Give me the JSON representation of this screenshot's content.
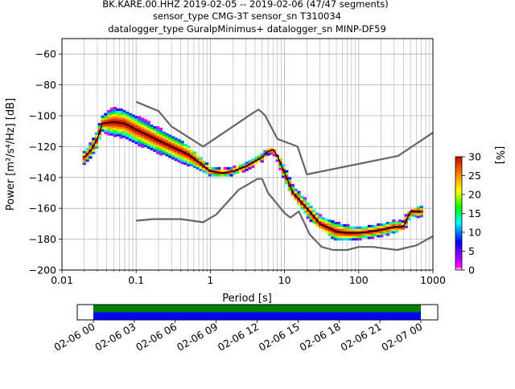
{
  "title": {
    "line1": "BK.KARE.00.HHZ   2019-02-05 -- 2019-02-06  (47/47 segments)",
    "line2": "sensor_type CMG-3T sensor_sn T310034",
    "line3": "datalogger_type GuralpMinimus+ datalogger_sn MINP-DF59"
  },
  "chart_data": [
    {
      "type": "heatmap",
      "xlabel": "Period [s]",
      "ylabel": "Power [m²/s⁴/Hz] [dB]",
      "xscale": "log",
      "xlim": [
        0.01,
        1000
      ],
      "ylim": [
        -200,
        -50
      ],
      "grid": true,
      "x_ticks": [
        {
          "v": 0.01,
          "label": "0.01"
        },
        {
          "v": 0.1,
          "label": "0.1"
        },
        {
          "v": 1,
          "label": "1"
        },
        {
          "v": 10,
          "label": "10"
        },
        {
          "v": 100,
          "label": "100"
        },
        {
          "v": 1000,
          "label": "1000"
        }
      ],
      "y_ticks": [
        {
          "v": -60,
          "label": "−60"
        },
        {
          "v": -80,
          "label": "−80"
        },
        {
          "v": -100,
          "label": "−100"
        },
        {
          "v": -120,
          "label": "−120"
        },
        {
          "v": -140,
          "label": "−140"
        },
        {
          "v": -160,
          "label": "−160"
        },
        {
          "v": -180,
          "label": "−180"
        },
        {
          "v": -200,
          "label": "−200"
        }
      ],
      "colorbar": {
        "label": "[%]",
        "range": [
          0,
          30
        ],
        "ticks": [
          {
            "v": 0,
            "label": "0"
          },
          {
            "v": 5,
            "label": "5"
          },
          {
            "v": 10,
            "label": "10"
          },
          {
            "v": 15,
            "label": "15"
          },
          {
            "v": 20,
            "label": "20"
          },
          {
            "v": 25,
            "label": "25"
          },
          {
            "v": 30,
            "label": "30"
          }
        ]
      },
      "mean_psd": {
        "x": [
          0.02,
          0.025,
          0.03,
          0.035,
          0.05,
          0.07,
          0.1,
          0.15,
          0.2,
          0.3,
          0.5,
          0.7,
          1.0,
          1.5,
          2.0,
          3.0,
          5.0,
          6.0,
          7.0,
          8.0,
          10.0,
          13.0,
          20.0,
          30.0,
          50.0,
          70.0,
          100.0,
          150.0,
          200.0,
          300.0,
          400.0,
          500.0,
          700.0
        ],
        "y": [
          -127,
          -122,
          -115,
          -105,
          -104,
          -105,
          -109,
          -113,
          -116,
          -120,
          -125,
          -130,
          -136,
          -137,
          -136,
          -133,
          -127,
          -123,
          -122,
          -126,
          -137,
          -150,
          -160,
          -170,
          -175,
          -176,
          -176,
          -175,
          -174,
          -172,
          -172,
          -162,
          -162
        ]
      },
      "spread_psd": [
        {
          "x": [
            0.02,
            0.03,
            0.035,
            0.05,
            0.1,
            0.2,
            0.3,
            0.5,
            1.0,
            2.0,
            5.0,
            7.0,
            10.0,
            20.0,
            50.0,
            100.0,
            300.0,
            700.0
          ],
          "y": [
            -123,
            -110,
            -100,
            -94,
            -100,
            -108,
            -113,
            -120,
            -134,
            -134,
            -125,
            -121,
            -133,
            -155,
            -168,
            -172,
            -168,
            -158
          ]
        },
        {
          "x": [
            0.02,
            0.03,
            0.035,
            0.05,
            0.1,
            0.2,
            0.3,
            0.5,
            1.0,
            2.0,
            5.0,
            7.0,
            10.0,
            20.0,
            50.0,
            100.0,
            300.0,
            700.0
          ],
          "y": [
            -131,
            -121,
            -110,
            -112,
            -118,
            -124,
            -128,
            -134,
            -140,
            -139,
            -130,
            -125,
            -142,
            -165,
            -180,
            -180,
            -176,
            -165
          ]
        }
      ],
      "noise_models": [
        {
          "x": [
            0.1,
            0.2,
            0.3,
            0.8,
            3.8,
            4.5,
            5.5,
            8.0,
            15.0,
            20.0,
            340.0,
            1000.0
          ],
          "y": [
            -91,
            -97,
            -107,
            -120,
            -98,
            -96,
            -100,
            -115,
            -120,
            -138,
            -126,
            -111
          ]
        },
        {
          "x": [
            0.1,
            0.17,
            0.4,
            0.8,
            1.2,
            2.4,
            4.3,
            5.0,
            6.0,
            10.0,
            12.0,
            15.6,
            21.9,
            31.6,
            45.0,
            70.0,
            101.0,
            154.0,
            328.0,
            600.0,
            1000.0
          ],
          "y": [
            -168,
            -167,
            -167,
            -169,
            -164,
            -148,
            -141,
            -141,
            -150,
            -163,
            -166,
            -162,
            -177,
            -185,
            -187,
            -187,
            -185,
            -185,
            -187,
            -184,
            -178
          ]
        }
      ]
    },
    {
      "type": "timeline",
      "x_ticks": [
        "02-06 00",
        "02-06 03",
        "02-06 06",
        "02-06 09",
        "02-06 12",
        "02-06 15",
        "02-06 18",
        "02-06 21",
        "02-07 00"
      ],
      "colors": {
        "top": "#008000",
        "bottom": "#0000ff"
      }
    }
  ]
}
